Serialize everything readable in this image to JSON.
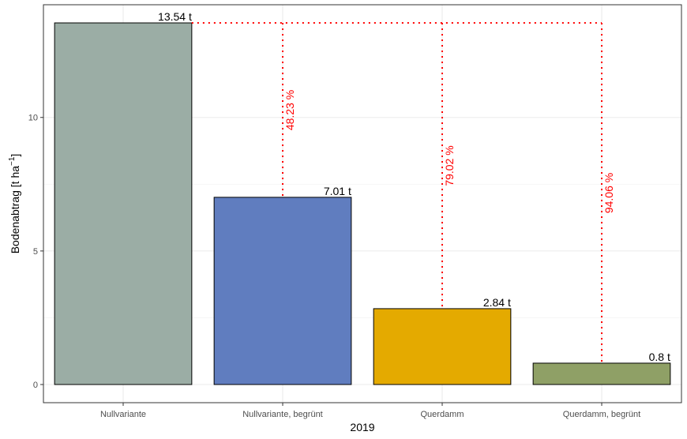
{
  "chart_data": {
    "type": "bar",
    "categories": [
      "Nullvariante",
      "Nullvariante, begrünt",
      "Querdamm",
      "Querdamm, begrünt"
    ],
    "values": [
      13.54,
      7.01,
      2.84,
      0.8
    ],
    "value_labels": [
      "13.54 t",
      "7.01 t",
      "2.84 t",
      "0.8 t"
    ],
    "bar_colors": [
      "#9BADA5",
      "#607DBF",
      "#E4AA00",
      "#8FA066"
    ],
    "reduction_labels": [
      "",
      "48.23 %",
      "79.02 %",
      "94.06 %"
    ],
    "reduction_color": "#ff0000",
    "xlabel": "2019",
    "ylabel": "Bodenabtrag [t ha",
    "ylabel_superscript": "−1",
    "ylabel_suffix": "]",
    "yticks": [
      0,
      5,
      10
    ],
    "ylim": [
      -0.68,
      14.22
    ],
    "grid": true,
    "legend": "none"
  }
}
